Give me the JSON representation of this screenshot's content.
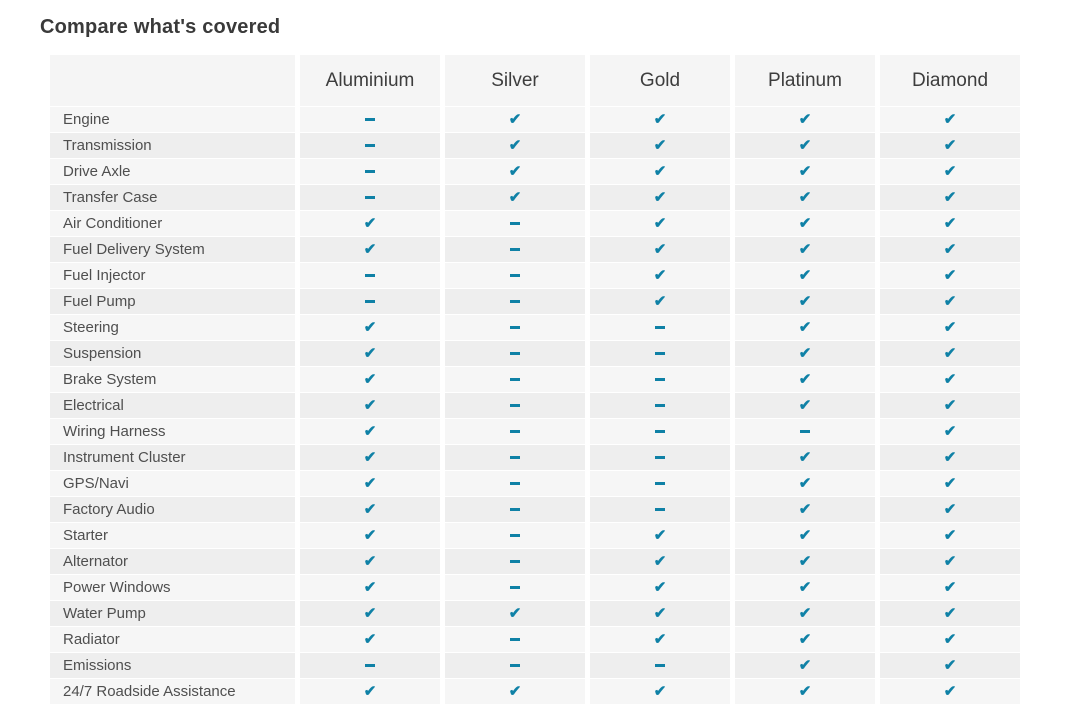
{
  "title": "Compare what's covered",
  "colors": {
    "check": "#0f81a6",
    "row_odd": "#f6f6f6",
    "row_even": "#eeeeee",
    "header_bg": "#f5f5f5",
    "title_text": "#3a3a3a",
    "label_text": "#4f4f4f"
  },
  "icons": {
    "check_glyph": "✔",
    "check_meaning": "covered",
    "dash_meaning": "not covered"
  },
  "table": {
    "columns": [
      "Aluminium",
      "Silver",
      "Gold",
      "Platinum",
      "Diamond"
    ],
    "rows": [
      {
        "label": "Engine",
        "covered": [
          false,
          true,
          true,
          true,
          true
        ]
      },
      {
        "label": "Transmission",
        "covered": [
          false,
          true,
          true,
          true,
          true
        ]
      },
      {
        "label": "Drive Axle",
        "covered": [
          false,
          true,
          true,
          true,
          true
        ]
      },
      {
        "label": "Transfer Case",
        "covered": [
          false,
          true,
          true,
          true,
          true
        ]
      },
      {
        "label": "Air Conditioner",
        "covered": [
          true,
          false,
          true,
          true,
          true
        ]
      },
      {
        "label": "Fuel Delivery System",
        "covered": [
          true,
          false,
          true,
          true,
          true
        ]
      },
      {
        "label": "Fuel Injector",
        "covered": [
          false,
          false,
          true,
          true,
          true
        ]
      },
      {
        "label": "Fuel Pump",
        "covered": [
          false,
          false,
          true,
          true,
          true
        ]
      },
      {
        "label": "Steering",
        "covered": [
          true,
          false,
          false,
          true,
          true
        ]
      },
      {
        "label": "Suspension",
        "covered": [
          true,
          false,
          false,
          true,
          true
        ]
      },
      {
        "label": "Brake System",
        "covered": [
          true,
          false,
          false,
          true,
          true
        ]
      },
      {
        "label": "Electrical",
        "covered": [
          true,
          false,
          false,
          true,
          true
        ]
      },
      {
        "label": "Wiring Harness",
        "covered": [
          true,
          false,
          false,
          false,
          true
        ]
      },
      {
        "label": "Instrument Cluster",
        "covered": [
          true,
          false,
          false,
          true,
          true
        ]
      },
      {
        "label": "GPS/Navi",
        "covered": [
          true,
          false,
          false,
          true,
          true
        ]
      },
      {
        "label": "Factory Audio",
        "covered": [
          true,
          false,
          false,
          true,
          true
        ]
      },
      {
        "label": "Starter",
        "covered": [
          true,
          false,
          true,
          true,
          true
        ]
      },
      {
        "label": "Alternator",
        "covered": [
          true,
          false,
          true,
          true,
          true
        ]
      },
      {
        "label": "Power Windows",
        "covered": [
          true,
          false,
          true,
          true,
          true
        ]
      },
      {
        "label": "Water Pump",
        "covered": [
          true,
          true,
          true,
          true,
          true
        ]
      },
      {
        "label": "Radiator",
        "covered": [
          true,
          false,
          true,
          true,
          true
        ]
      },
      {
        "label": "Emissions",
        "covered": [
          false,
          false,
          false,
          true,
          true
        ]
      },
      {
        "label": "24/7 Roadside Assistance",
        "covered": [
          true,
          true,
          true,
          true,
          true
        ]
      }
    ]
  }
}
